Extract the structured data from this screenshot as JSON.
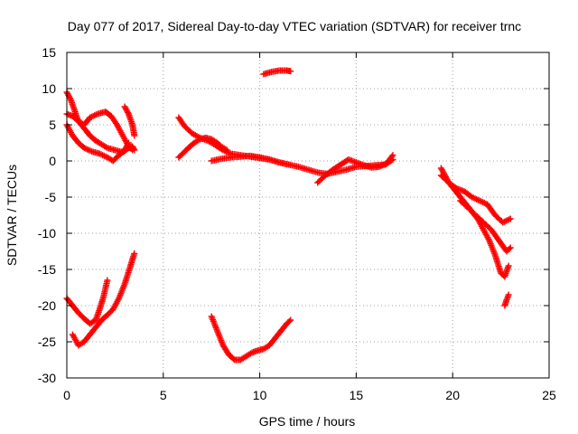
{
  "chart_data": {
    "type": "scatter",
    "title": "Day 077 of 2017, Sidereal Day-to-day VTEC variation (SDTVAR) for receiver trnc",
    "xlabel": "GPS time / hours",
    "ylabel": "SDTVAR / TECUs",
    "xlim": [
      0,
      25
    ],
    "ylim": [
      -30,
      15
    ],
    "x_ticks": [
      0,
      5,
      10,
      15,
      20,
      25
    ],
    "y_ticks": [
      15,
      10,
      5,
      0,
      -5,
      -10,
      -15,
      -20,
      -25,
      -30
    ],
    "grid": true,
    "marker": "plus",
    "series_color": "#ff0000",
    "series": [
      {
        "x": [
          0.0,
          0.2,
          0.4,
          0.6,
          0.9,
          1.2,
          1.5,
          1.8,
          2.1,
          2.5,
          2.9,
          3.2,
          3.4,
          3.5
        ],
        "y": [
          9.5,
          8.5,
          7.0,
          5.5,
          4.5,
          3.5,
          2.8,
          2.3,
          1.8,
          1.5,
          1.2,
          1.8,
          2.0,
          1.5
        ]
      },
      {
        "x": [
          0.0,
          0.3,
          0.6,
          0.9,
          1.2,
          1.6,
          2.0,
          2.3,
          2.6,
          2.9,
          3.2,
          3.4
        ],
        "y": [
          6.5,
          6.2,
          5.5,
          5.0,
          6.0,
          6.5,
          6.8,
          6.2,
          5.0,
          3.5,
          2.0,
          1.5
        ]
      },
      {
        "x": [
          0.0,
          0.3,
          0.6,
          0.9,
          1.3,
          1.7,
          2.1,
          2.4,
          2.7,
          3.0,
          3.2
        ],
        "y": [
          5.0,
          3.5,
          2.5,
          1.8,
          1.3,
          1.0,
          0.5,
          0.0,
          0.8,
          1.5,
          2.5
        ]
      },
      {
        "x": [
          3.0,
          3.2,
          3.4,
          3.5
        ],
        "y": [
          7.5,
          6.5,
          5.0,
          3.5
        ]
      },
      {
        "x": [
          5.8,
          6.1,
          6.5,
          6.9,
          7.3,
          7.7,
          8.1,
          8.5,
          9.0,
          9.5,
          10.0,
          10.5,
          11.0,
          11.5,
          12.0,
          12.5,
          13.0,
          13.5,
          14.0,
          14.5,
          15.0,
          15.5,
          16.0,
          16.5,
          16.9
        ],
        "y": [
          6.0,
          4.8,
          3.8,
          3.2,
          2.8,
          2.2,
          1.5,
          1.0,
          0.8,
          0.6,
          0.4,
          0.2,
          -0.2,
          -0.5,
          -0.8,
          -1.2,
          -1.6,
          -1.8,
          -1.5,
          -1.2,
          -0.8,
          -0.7,
          -0.6,
          -0.5,
          0.2
        ]
      },
      {
        "x": [
          5.8,
          6.0,
          6.3,
          6.6,
          6.9,
          7.2,
          7.5,
          7.8,
          8.0,
          8.3
        ],
        "y": [
          0.5,
          1.0,
          1.8,
          2.5,
          3.0,
          3.2,
          3.0,
          2.5,
          2.0,
          1.5
        ]
      },
      {
        "x": [
          7.5,
          8.0,
          8.5,
          9.0,
          9.5,
          10.0,
          10.5,
          11.0,
          11.5
        ],
        "y": [
          0.0,
          0.3,
          0.5,
          0.6,
          0.7,
          0.5,
          0.2,
          -0.2,
          -0.5
        ]
      },
      {
        "x": [
          13.0,
          13.4,
          13.8,
          14.2,
          14.6,
          15.0,
          15.4,
          15.8,
          16.2,
          16.6,
          16.9
        ],
        "y": [
          -3.0,
          -2.0,
          -1.2,
          -0.5,
          0.2,
          -0.2,
          -0.6,
          -0.9,
          -0.8,
          -0.3,
          0.8
        ]
      },
      {
        "x": [
          10.2,
          10.6,
          11.0,
          11.4,
          11.6
        ],
        "y": [
          12.0,
          12.3,
          12.5,
          12.5,
          12.4
        ]
      },
      {
        "x": [
          19.4,
          19.6,
          19.8,
          20.1,
          20.4,
          20.7,
          21.0,
          21.3,
          21.6,
          21.9,
          22.2,
          22.5,
          22.7,
          22.9
        ],
        "y": [
          -1.0,
          -2.0,
          -3.0,
          -4.0,
          -5.0,
          -6.0,
          -7.0,
          -8.0,
          -9.5,
          -11.0,
          -13.0,
          -15.5,
          -16.0,
          -14.5
        ]
      },
      {
        "x": [
          19.4,
          19.8,
          20.2,
          20.6,
          21.0,
          21.4,
          21.8,
          22.2,
          22.6,
          23.0
        ],
        "y": [
          -2.0,
          -3.0,
          -3.8,
          -4.2,
          -5.0,
          -5.5,
          -6.0,
          -7.5,
          -8.5,
          -8.0
        ]
      },
      {
        "x": [
          20.4,
          20.8,
          21.2,
          21.6,
          22.0,
          22.4,
          22.8,
          23.0
        ],
        "y": [
          -5.5,
          -6.5,
          -7.5,
          -8.5,
          -9.5,
          -11.0,
          -12.5,
          -12.0
        ]
      },
      {
        "x": [
          22.7,
          22.8,
          22.9
        ],
        "y": [
          -20.0,
          -19.2,
          -18.5
        ]
      },
      {
        "x": [
          0.0,
          0.3,
          0.6,
          0.9,
          1.2,
          1.5,
          1.7,
          1.9,
          2.1
        ],
        "y": [
          -19.0,
          -20.0,
          -21.0,
          -21.8,
          -22.5,
          -22.0,
          -20.5,
          -18.8,
          -16.5
        ]
      },
      {
        "x": [
          0.3,
          0.6,
          0.9,
          1.2,
          1.5,
          1.8,
          2.1,
          2.4,
          2.7,
          3.0,
          3.3,
          3.5
        ],
        "y": [
          -24.0,
          -25.5,
          -25.0,
          -24.0,
          -23.0,
          -22.0,
          -21.3,
          -20.5,
          -19.0,
          -17.0,
          -14.5,
          -12.8
        ]
      },
      {
        "x": [
          7.5,
          7.8,
          8.1,
          8.4,
          8.7,
          9.0,
          9.3,
          9.6,
          9.9,
          10.2,
          10.5,
          10.8,
          11.1,
          11.4,
          11.6
        ],
        "y": [
          -21.5,
          -23.5,
          -25.5,
          -26.8,
          -27.5,
          -27.5,
          -27.0,
          -26.5,
          -26.2,
          -26.0,
          -25.5,
          -24.5,
          -23.5,
          -22.5,
          -22.0
        ]
      }
    ]
  }
}
